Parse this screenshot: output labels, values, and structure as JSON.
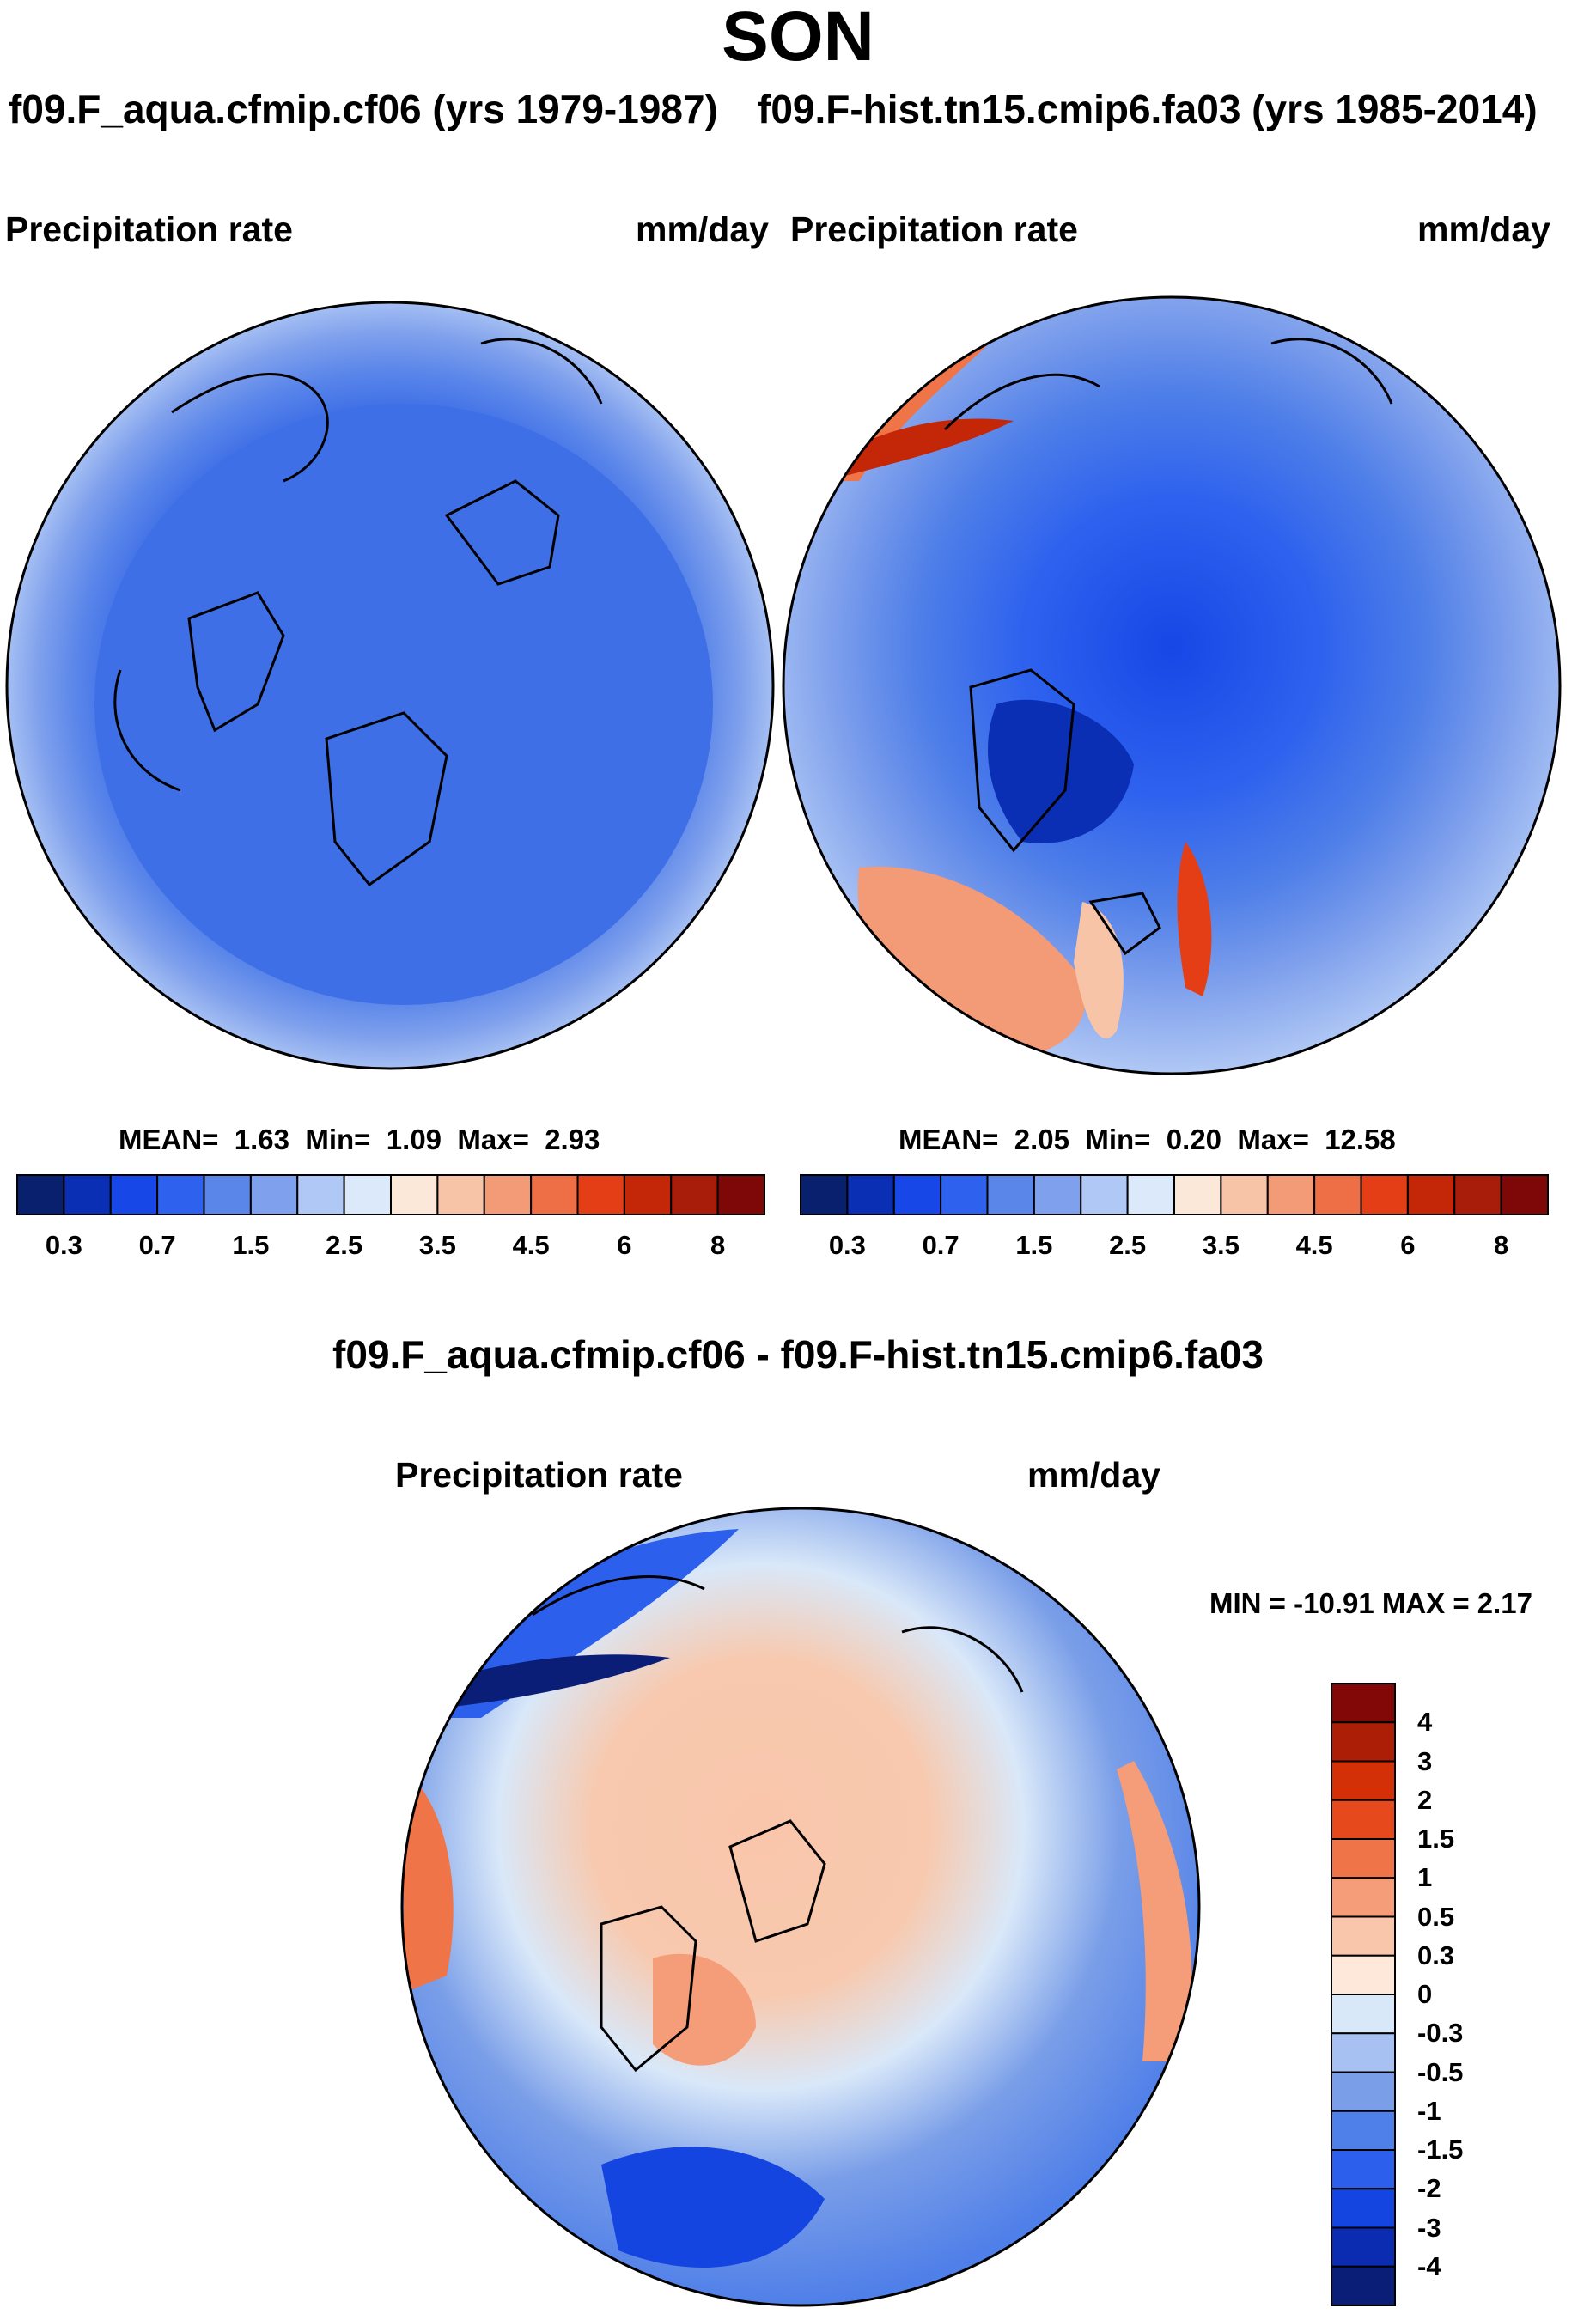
{
  "season": "SON",
  "panel_left": {
    "case_title": "f09.F_aqua.cfmip.cf06 (yrs 1979-1987)",
    "variable": "Precipitation rate",
    "units": "mm/day",
    "stats": {
      "mean_label": "MEAN=",
      "mean": "1.63",
      "min_label": "Min=",
      "min": "1.09",
      "max_label": "Max=",
      "max": "2.93"
    }
  },
  "panel_right": {
    "case_title": "f09.F-hist.tn15.cmip6.fa03 (yrs 1985-2014)",
    "variable": "Precipitation rate",
    "units": "mm/day",
    "stats": {
      "mean_label": "MEAN=",
      "mean": "2.05",
      "min_label": "Min=",
      "min": "0.20",
      "max_label": "Max=",
      "max": "12.58"
    }
  },
  "panel_diff": {
    "title": "f09.F_aqua.cfmip.cf06 - f09.F-hist.tn15.cmip6.fa03",
    "variable": "Precipitation rate",
    "units": "mm/day",
    "minmax": "MIN = -10.91 MAX =   2.17"
  },
  "colorbar_top": {
    "colors": [
      "#08206e",
      "#0a2fb5",
      "#1747e6",
      "#2e62ee",
      "#5a86ea",
      "#7fa0ec",
      "#b0c8f5",
      "#dce9fa",
      "#fce8d8",
      "#f8c4a8",
      "#f39a76",
      "#ee6e45",
      "#e43e16",
      "#c42608",
      "#a81c0a",
      "#7e0808"
    ],
    "tick_labels": [
      "0.3",
      "0.7",
      "1.5",
      "2.5",
      "3.5",
      "4.5",
      "6",
      "8"
    ]
  },
  "colorbar_diff": {
    "colors": [
      "#0a1e78",
      "#0b2cb0",
      "#1545e0",
      "#2c5fec",
      "#4f7fe8",
      "#7a9ee8",
      "#a7c2f2",
      "#d9e8f9",
      "#fde8da",
      "#f9c6ac",
      "#f59c78",
      "#ef7448",
      "#e64a1c",
      "#d43008",
      "#ad1e06",
      "#820808"
    ],
    "tick_labels": [
      "4",
      "3",
      "2",
      "1.5",
      "1",
      "0.5",
      "0.3",
      "0",
      "-0.3",
      "-0.5",
      "-1",
      "-1.5",
      "-2",
      "-3",
      "-4"
    ]
  }
}
